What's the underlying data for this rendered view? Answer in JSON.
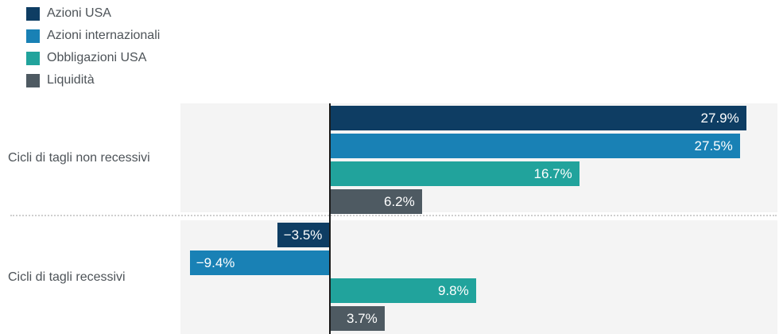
{
  "chart_data": {
    "type": "bar",
    "orientation": "horizontal",
    "title": "",
    "categories": [
      "Cicli di tagli non recessivi",
      "Cicli di tagli recessivi"
    ],
    "series": [
      {
        "name": "Azioni USA",
        "color": "#0e3d63",
        "values": [
          27.9,
          -3.5
        ]
      },
      {
        "name": "Azioni internazionali",
        "color": "#1981b5",
        "values": [
          27.5,
          -9.4
        ]
      },
      {
        "name": "Obbligazioni USA",
        "color": "#21a39c",
        "values": [
          16.7,
          9.8
        ]
      },
      {
        "name": "Liquidità",
        "color": "#4e5a62",
        "values": [
          6.2,
          3.7
        ]
      }
    ],
    "value_labels": [
      [
        "27.9%",
        "27.5%",
        "16.7%",
        "6.2%"
      ],
      [
        "−3.5%",
        "−9.4%",
        "9.8%",
        "3.7%"
      ]
    ],
    "xlim": [
      -10,
      30
    ],
    "grid": false,
    "legend_position": "top-left"
  },
  "colors": {
    "plot_background": "#f4f4f4",
    "zero_line": "#1a1a1a",
    "separator_dots": "#cfcfcf",
    "label_text": "#4d5358",
    "value_label_text": "#ffffff"
  }
}
